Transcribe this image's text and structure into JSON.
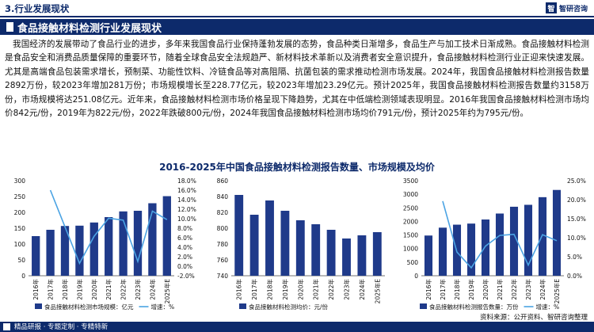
{
  "header": {
    "section": "3.行业发展现状",
    "logo_mark": "智",
    "logo_text": "智研咨询"
  },
  "title": "食品接触材料检测行业发展现状",
  "body_text": "我国经济的发展带动了食品行业的进步，多年来我国食品行业保持蓬勃发展的态势，食品种类日渐增多，食品生产与加工技术日渐成熟。食品接触材料检测是食品安全和消费品质量保障的重要环节，随着全球食品安全法规趋严、新材料技术革新以及消费者安全意识提升，食品接触材料检测行业正迎来快速发展。尤其是高端食品包装需求增长，预制菜、功能性饮料、冷链食品等对高阻隔、抗菌包装的需求推动检测市场发展。2024年，我国食品接触材料检测报告数量2892万份，较2023年增加281万份；市场规模增长至228.77亿元，较2023年增加23.29亿元。预计2025年，我国食品接触材料检测报告数量约3158万份，市场规模将达251.08亿元。近年来，食品接触材料检测市场价格呈现下降趋势，尤其在中低端检测领域表现明显。2016年我国食品接触材料检测市场均价842元/份，2019年为822元/份，2022年跌破800元/份，2024年我国食品接触材料检测市场均价791元/份，预计2025年约为795元/份。",
  "chart_section_title": "2016-2025年中国食品接触材料检测报告数量、市场规模及均价",
  "colors": {
    "navy": "#0d2a6b",
    "bar": "#1f3a8a",
    "line": "#4ba3e3"
  },
  "chart_data": [
    {
      "type": "bar",
      "categories": [
        "2016年",
        "2017年",
        "2018年",
        "2019年",
        "2020年",
        "2021年",
        "2022年",
        "2023年",
        "2024年",
        "2025年E"
      ],
      "series": [
        {
          "name": "食品接触材料检测市场规模：亿元",
          "values": [
            125,
            145,
            157,
            158,
            168,
            185,
            203,
            205,
            228.77,
            251.08
          ],
          "axis": "left"
        },
        {
          "name": "增速：%",
          "values": [
            null,
            16.0,
            8.3,
            0.6,
            6.3,
            10.1,
            9.7,
            1.0,
            11.6,
            9.8
          ],
          "axis": "right",
          "type": "line"
        }
      ],
      "ylim": [
        0,
        300
      ],
      "yticks": [
        0,
        50,
        100,
        150,
        200,
        250,
        300
      ],
      "y2lim": [
        -2,
        18
      ],
      "y2ticks": [
        "-2.0%",
        "0.0%",
        "2.0%",
        "4.0%",
        "6.0%",
        "8.0%",
        "10.0%",
        "12.0%",
        "14.0%",
        "16.0%",
        "18.0%"
      ]
    },
    {
      "type": "bar",
      "categories": [
        "2016年",
        "2017年",
        "2018年",
        "2019年",
        "2020年",
        "2021年",
        "2022年",
        "2023年",
        "2024年",
        "2025年E"
      ],
      "series": [
        {
          "name": "食品接触材料检测均价：元/份",
          "values": [
            842,
            817,
            835,
            822,
            810,
            805,
            798,
            787,
            791,
            795
          ]
        }
      ],
      "ylim": [
        740,
        860
      ],
      "yticks": [
        740,
        760,
        780,
        800,
        820,
        840,
        860
      ]
    },
    {
      "type": "bar",
      "categories": [
        "2016年",
        "2017年",
        "2018年",
        "2019年",
        "2020年",
        "2021年",
        "2022年",
        "2023年",
        "2024年",
        "2025年E"
      ],
      "series": [
        {
          "name": "食品接触材料检测报告数量：万份",
          "values": [
            1480,
            1770,
            1880,
            1920,
            2070,
            2290,
            2540,
            2611,
            2892,
            3158
          ],
          "axis": "left"
        },
        {
          "name": "增速：%",
          "values": [
            null,
            19.6,
            6.2,
            2.1,
            7.8,
            10.6,
            10.9,
            2.8,
            10.8,
            9.2
          ],
          "axis": "right",
          "type": "line"
        }
      ],
      "ylim": [
        0,
        3500
      ],
      "yticks": [
        0,
        500,
        1000,
        1500,
        2000,
        2500,
        3000,
        3500
      ],
      "y2lim": [
        0,
        25
      ],
      "y2ticks": [
        "0.0%",
        "5.0%",
        "10.0%",
        "15.0%",
        "20.0%",
        "25.0%"
      ]
    }
  ],
  "source": "资料来源：公开资料、智研咨询整理",
  "footer": "精品研报 · 专题定制 · 专精特新"
}
